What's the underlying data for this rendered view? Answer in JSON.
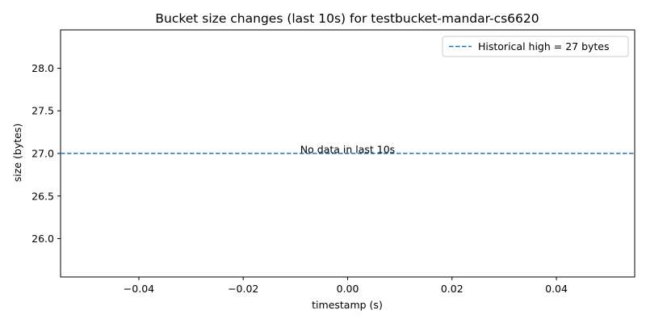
{
  "chart_data": {
    "type": "line",
    "title": "Bucket size changes (last 10s) for testbucket-mandar-cs6620",
    "xlabel": "timestamp (s)",
    "ylabel": "size (bytes)",
    "xlim": [
      -0.055,
      0.055
    ],
    "ylim": [
      25.55,
      28.45
    ],
    "xticks": [
      -0.04,
      -0.02,
      0.0,
      0.02,
      0.04
    ],
    "xtick_labels": [
      "−0.04",
      "−0.02",
      "0.00",
      "0.02",
      "0.04"
    ],
    "yticks": [
      26.0,
      26.5,
      27.0,
      27.5,
      28.0
    ],
    "ytick_labels": [
      "26.0",
      "26.5",
      "27.0",
      "27.5",
      "28.0"
    ],
    "grid": false,
    "series": [],
    "reference_lines": [
      {
        "orientation": "horizontal",
        "y": 27,
        "style": "dashed",
        "color": "#1f77b4",
        "label": "Historical high = 27 bytes"
      }
    ],
    "annotations": [
      {
        "text": "No data in last 10s",
        "x": 0.0,
        "y": 27.0
      }
    ],
    "legend": {
      "position": "top-right"
    }
  }
}
